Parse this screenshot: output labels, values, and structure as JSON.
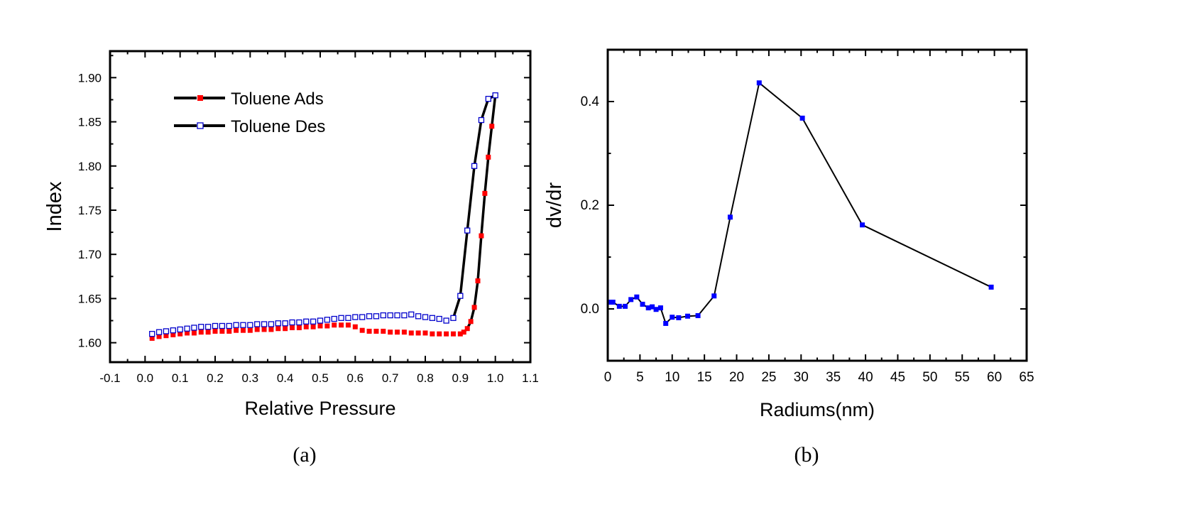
{
  "figure": {
    "panels": [
      {
        "caption": "(a)",
        "chart_data": {
          "type": "scatter",
          "xlabel": "Relative Pressure",
          "ylabel": "Index",
          "xlim": [
            -0.1,
            1.1
          ],
          "ylim": [
            1.578,
            1.93
          ],
          "xticks": [
            -0.1,
            0.0,
            0.1,
            0.2,
            0.3,
            0.4,
            0.5,
            0.6,
            0.7,
            0.8,
            0.9,
            1.0,
            1.1
          ],
          "xtick_labels": [
            "-0.1",
            "0.0",
            "0.1",
            "0.2",
            "0.3",
            "0.4",
            "0.5",
            "0.6",
            "0.7",
            "0.8",
            "0.9",
            "1.0",
            "1.1"
          ],
          "yticks": [
            1.6,
            1.65,
            1.7,
            1.75,
            1.8,
            1.85,
            1.9
          ],
          "ytick_labels": [
            "1.60",
            "1.65",
            "1.70",
            "1.75",
            "1.80",
            "1.85",
            "1.90"
          ],
          "grid": false,
          "legend": "top-left",
          "series": [
            {
              "name": "Toluene Ads",
              "marker": "filled-square",
              "color": "#ff0000",
              "line_color": "#000000",
              "line_segments": [
                [
                  0.91,
                  1.0
                ]
              ],
              "x": [
                0.02,
                0.04,
                0.06,
                0.08,
                0.1,
                0.12,
                0.14,
                0.16,
                0.18,
                0.2,
                0.22,
                0.24,
                0.26,
                0.28,
                0.3,
                0.32,
                0.34,
                0.36,
                0.38,
                0.4,
                0.42,
                0.44,
                0.46,
                0.48,
                0.5,
                0.52,
                0.54,
                0.56,
                0.58,
                0.6,
                0.62,
                0.64,
                0.66,
                0.68,
                0.7,
                0.72,
                0.74,
                0.76,
                0.78,
                0.8,
                0.82,
                0.84,
                0.86,
                0.88,
                0.9,
                0.91,
                0.92,
                0.93,
                0.94,
                0.95,
                0.96,
                0.97,
                0.98,
                0.99,
                1.0
              ],
              "y": [
                1.605,
                1.607,
                1.608,
                1.609,
                1.61,
                1.611,
                1.611,
                1.612,
                1.612,
                1.613,
                1.613,
                1.613,
                1.614,
                1.614,
                1.614,
                1.615,
                1.615,
                1.615,
                1.616,
                1.616,
                1.617,
                1.617,
                1.618,
                1.618,
                1.619,
                1.619,
                1.62,
                1.62,
                1.62,
                1.618,
                1.614,
                1.613,
                1.613,
                1.613,
                1.612,
                1.612,
                1.612,
                1.611,
                1.611,
                1.611,
                1.61,
                1.61,
                1.61,
                1.61,
                1.61,
                1.612,
                1.616,
                1.624,
                1.64,
                1.67,
                1.721,
                1.769,
                1.81,
                1.845,
                1.88
              ]
            },
            {
              "name": "Toluene Des",
              "marker": "open-square",
              "color": "#0000cc",
              "line_color": "#000000",
              "line_segments": [
                [
                  0.88,
                  1.0
                ]
              ],
              "x": [
                0.02,
                0.04,
                0.06,
                0.08,
                0.1,
                0.12,
                0.14,
                0.16,
                0.18,
                0.2,
                0.22,
                0.24,
                0.26,
                0.28,
                0.3,
                0.32,
                0.34,
                0.36,
                0.38,
                0.4,
                0.42,
                0.44,
                0.46,
                0.48,
                0.5,
                0.52,
                0.54,
                0.56,
                0.58,
                0.6,
                0.62,
                0.64,
                0.66,
                0.68,
                0.7,
                0.72,
                0.74,
                0.76,
                0.78,
                0.8,
                0.82,
                0.84,
                0.86,
                0.88,
                0.9,
                0.92,
                0.94,
                0.96,
                0.98,
                1.0
              ],
              "y": [
                1.61,
                1.612,
                1.613,
                1.614,
                1.615,
                1.616,
                1.617,
                1.618,
                1.618,
                1.619,
                1.619,
                1.619,
                1.62,
                1.62,
                1.62,
                1.621,
                1.621,
                1.621,
                1.622,
                1.622,
                1.623,
                1.623,
                1.624,
                1.624,
                1.625,
                1.626,
                1.627,
                1.628,
                1.628,
                1.629,
                1.629,
                1.63,
                1.63,
                1.631,
                1.631,
                1.631,
                1.631,
                1.632,
                1.63,
                1.629,
                1.628,
                1.627,
                1.625,
                1.628,
                1.653,
                1.727,
                1.8,
                1.852,
                1.876,
                1.88
              ]
            }
          ]
        }
      },
      {
        "caption": "(b)",
        "chart_data": {
          "type": "line",
          "xlabel": "Radiums(nm)",
          "ylabel": "dv/dr",
          "xlim": [
            0,
            65
          ],
          "ylim": [
            -0.1,
            0.5
          ],
          "xticks": [
            0,
            5,
            10,
            15,
            20,
            25,
            30,
            35,
            40,
            45,
            50,
            55,
            60,
            65
          ],
          "xtick_labels": [
            "0",
            "5",
            "10",
            "15",
            "20",
            "25",
            "30",
            "35",
            "40",
            "45",
            "50",
            "55",
            "60",
            "65"
          ],
          "yticks": [
            0.0,
            0.2,
            0.4
          ],
          "ytick_labels": [
            "0.0",
            "0.2",
            "0.4"
          ],
          "grid": false,
          "series": [
            {
              "name": "",
              "marker": "filled-square",
              "color": "#0000ff",
              "line_color": "#000000",
              "x": [
                0.4,
                0.8,
                1.8,
                2.7,
                3.6,
                4.5,
                5.4,
                6.3,
                6.9,
                7.5,
                8.2,
                9.0,
                10.0,
                11.0,
                12.4,
                14.0,
                16.5,
                19.0,
                23.5,
                30.2,
                39.5,
                59.5
              ],
              "y": [
                0.013,
                0.013,
                0.005,
                0.005,
                0.018,
                0.023,
                0.009,
                0.002,
                0.004,
                -0.001,
                0.002,
                -0.028,
                -0.016,
                -0.017,
                -0.014,
                -0.013,
                0.025,
                0.177,
                0.436,
                0.368,
                0.162,
                0.042
              ]
            }
          ]
        }
      }
    ]
  }
}
